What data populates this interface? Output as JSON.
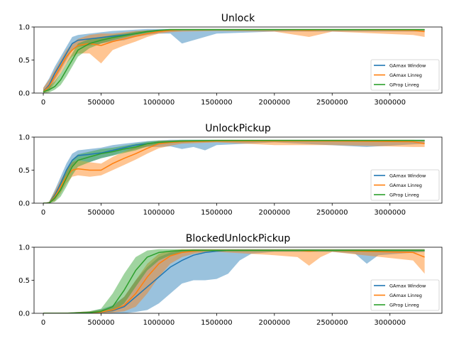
{
  "chart_data": [
    {
      "type": "line",
      "title": "Unlock",
      "xlim": [
        -80000,
        3450000
      ],
      "ylim": [
        0,
        1.0
      ],
      "xticks": [
        0,
        500000,
        1000000,
        1500000,
        2000000,
        2500000,
        3000000
      ],
      "xtick_labels": [
        "0",
        "500000",
        "1000000",
        "1500000",
        "2000000",
        "2500000",
        "3000000"
      ],
      "yticks": [
        0,
        0.5,
        1.0
      ],
      "ytick_labels": [
        "0.0",
        "0.5",
        "1.0"
      ],
      "legend_position": "lower-right",
      "series": [
        {
          "name": "GAmax Window",
          "color": "#1f77b4",
          "x": [
            0,
            50000,
            100000,
            150000,
            200000,
            250000,
            300000,
            400000,
            500000,
            600000,
            700000,
            800000,
            900000,
            1000000,
            1100000,
            1200000,
            1500000,
            2000000,
            2500000,
            3300000
          ],
          "y": [
            0.02,
            0.12,
            0.3,
            0.45,
            0.6,
            0.75,
            0.8,
            0.82,
            0.84,
            0.86,
            0.88,
            0.9,
            0.93,
            0.95,
            0.96,
            0.96,
            0.96,
            0.96,
            0.96,
            0.96
          ],
          "lower": [
            0,
            0.05,
            0.2,
            0.35,
            0.5,
            0.65,
            0.7,
            0.72,
            0.75,
            0.78,
            0.8,
            0.85,
            0.88,
            0.9,
            0.9,
            0.75,
            0.9,
            0.93,
            0.93,
            0.93
          ],
          "upper": [
            0.08,
            0.22,
            0.4,
            0.55,
            0.7,
            0.85,
            0.88,
            0.9,
            0.92,
            0.94,
            0.95,
            0.96,
            0.97,
            0.97,
            0.97,
            0.97,
            0.97,
            0.97,
            0.97,
            0.97
          ]
        },
        {
          "name": "GAmax Linreg",
          "color": "#ff7f0e",
          "x": [
            0,
            50000,
            100000,
            150000,
            200000,
            250000,
            300000,
            400000,
            500000,
            600000,
            700000,
            800000,
            900000,
            1000000,
            1100000,
            1200000,
            1500000,
            2000000,
            2300000,
            2500000,
            3200000,
            3300000
          ],
          "y": [
            0.02,
            0.1,
            0.25,
            0.4,
            0.55,
            0.65,
            0.72,
            0.75,
            0.72,
            0.78,
            0.82,
            0.86,
            0.9,
            0.93,
            0.95,
            0.96,
            0.96,
            0.96,
            0.95,
            0.96,
            0.95,
            0.93
          ],
          "lower": [
            0,
            0.03,
            0.15,
            0.3,
            0.45,
            0.55,
            0.6,
            0.6,
            0.45,
            0.65,
            0.72,
            0.78,
            0.85,
            0.9,
            0.92,
            0.93,
            0.94,
            0.93,
            0.85,
            0.93,
            0.88,
            0.85
          ],
          "upper": [
            0.08,
            0.2,
            0.35,
            0.5,
            0.65,
            0.75,
            0.82,
            0.88,
            0.9,
            0.9,
            0.92,
            0.94,
            0.95,
            0.96,
            0.97,
            0.97,
            0.97,
            0.97,
            0.97,
            0.97,
            0.97,
            0.97
          ]
        },
        {
          "name": "GProp Linreg",
          "color": "#2ca02c",
          "x": [
            0,
            50000,
            100000,
            150000,
            200000,
            250000,
            300000,
            400000,
            500000,
            600000,
            700000,
            800000,
            900000,
            1000000,
            1100000,
            1200000,
            1500000,
            2000000,
            2500000,
            3300000
          ],
          "y": [
            0.02,
            0.05,
            0.1,
            0.2,
            0.35,
            0.5,
            0.65,
            0.75,
            0.8,
            0.84,
            0.87,
            0.9,
            0.93,
            0.95,
            0.96,
            0.96,
            0.96,
            0.96,
            0.96,
            0.96
          ],
          "lower": [
            0,
            0.01,
            0.05,
            0.12,
            0.25,
            0.4,
            0.55,
            0.68,
            0.75,
            0.8,
            0.84,
            0.88,
            0.91,
            0.93,
            0.94,
            0.95,
            0.95,
            0.95,
            0.95,
            0.95
          ],
          "upper": [
            0.05,
            0.1,
            0.18,
            0.3,
            0.45,
            0.6,
            0.75,
            0.82,
            0.85,
            0.88,
            0.9,
            0.93,
            0.95,
            0.96,
            0.97,
            0.97,
            0.97,
            0.97,
            0.97,
            0.97
          ]
        }
      ]
    },
    {
      "type": "line",
      "title": "UnlockPickup",
      "xlim": [
        -80000,
        3450000
      ],
      "ylim": [
        0,
        1.0
      ],
      "xticks": [
        0,
        500000,
        1000000,
        1500000,
        2000000,
        2500000,
        3000000
      ],
      "xtick_labels": [
        "0",
        "500000",
        "1000000",
        "1500000",
        "2000000",
        "2500000",
        "3000000"
      ],
      "yticks": [
        0,
        0.5,
        1.0
      ],
      "ytick_labels": [
        "0.0",
        "0.5",
        "1.0"
      ],
      "legend_position": "lower-right",
      "series": [
        {
          "name": "GAmax Window",
          "color": "#1f77b4",
          "x": [
            0,
            50000,
            100000,
            150000,
            200000,
            250000,
            300000,
            400000,
            500000,
            600000,
            700000,
            800000,
            900000,
            1000000,
            1100000,
            1200000,
            1300000,
            1400000,
            1500000,
            2000000,
            2800000,
            3300000
          ],
          "y": [
            0,
            0,
            0.12,
            0.3,
            0.5,
            0.65,
            0.72,
            0.74,
            0.76,
            0.8,
            0.84,
            0.88,
            0.9,
            0.92,
            0.93,
            0.93,
            0.94,
            0.94,
            0.95,
            0.95,
            0.95,
            0.95
          ],
          "lower": [
            0,
            0,
            0.05,
            0.2,
            0.4,
            0.55,
            0.65,
            0.62,
            0.68,
            0.72,
            0.78,
            0.82,
            0.85,
            0.85,
            0.86,
            0.82,
            0.85,
            0.8,
            0.88,
            0.92,
            0.85,
            0.9
          ],
          "upper": [
            0,
            0.02,
            0.2,
            0.4,
            0.6,
            0.75,
            0.8,
            0.82,
            0.84,
            0.88,
            0.9,
            0.92,
            0.94,
            0.95,
            0.96,
            0.96,
            0.96,
            0.96,
            0.96,
            0.96,
            0.96,
            0.96
          ]
        },
        {
          "name": "GAmax Linreg",
          "color": "#ff7f0e",
          "x": [
            0,
            50000,
            100000,
            150000,
            200000,
            250000,
            300000,
            400000,
            500000,
            600000,
            700000,
            800000,
            900000,
            1000000,
            1100000,
            1200000,
            1500000,
            2000000,
            2500000,
            3200000,
            3300000
          ],
          "y": [
            0,
            0,
            0.1,
            0.25,
            0.4,
            0.5,
            0.52,
            0.5,
            0.5,
            0.6,
            0.68,
            0.75,
            0.83,
            0.9,
            0.92,
            0.93,
            0.94,
            0.94,
            0.94,
            0.93,
            0.9
          ],
          "lower": [
            0,
            0,
            0.03,
            0.15,
            0.3,
            0.4,
            0.42,
            0.4,
            0.42,
            0.5,
            0.58,
            0.66,
            0.75,
            0.83,
            0.87,
            0.9,
            0.92,
            0.88,
            0.88,
            0.85,
            0.85
          ],
          "upper": [
            0,
            0.02,
            0.18,
            0.35,
            0.5,
            0.62,
            0.65,
            0.62,
            0.6,
            0.7,
            0.78,
            0.85,
            0.9,
            0.94,
            0.95,
            0.95,
            0.96,
            0.96,
            0.96,
            0.96,
            0.95
          ]
        },
        {
          "name": "GProp Linreg",
          "color": "#2ca02c",
          "x": [
            0,
            50000,
            100000,
            150000,
            200000,
            250000,
            300000,
            400000,
            500000,
            600000,
            700000,
            800000,
            900000,
            1000000,
            1100000,
            1200000,
            1500000,
            2000000,
            2500000,
            3300000
          ],
          "y": [
            0,
            0,
            0.08,
            0.2,
            0.38,
            0.55,
            0.65,
            0.7,
            0.75,
            0.78,
            0.82,
            0.85,
            0.9,
            0.92,
            0.93,
            0.94,
            0.95,
            0.95,
            0.95,
            0.95
          ],
          "lower": [
            0,
            0,
            0.02,
            0.1,
            0.25,
            0.42,
            0.55,
            0.62,
            0.68,
            0.72,
            0.76,
            0.8,
            0.86,
            0.89,
            0.91,
            0.92,
            0.93,
            0.94,
            0.94,
            0.94
          ],
          "upper": [
            0,
            0.02,
            0.15,
            0.3,
            0.5,
            0.66,
            0.74,
            0.78,
            0.82,
            0.84,
            0.87,
            0.9,
            0.93,
            0.95,
            0.95,
            0.96,
            0.96,
            0.96,
            0.96,
            0.96
          ]
        }
      ]
    },
    {
      "type": "line",
      "title": "BlockedUnlockPickup",
      "xlim": [
        -80000,
        3450000
      ],
      "ylim": [
        0,
        1.0
      ],
      "xticks": [
        0,
        500000,
        1000000,
        1500000,
        2000000,
        2500000,
        3000000
      ],
      "xtick_labels": [
        "0",
        "500000",
        "1000000",
        "1500000",
        "2000000",
        "2500000",
        "3000000"
      ],
      "yticks": [
        0,
        0.5,
        1.0
      ],
      "ytick_labels": [
        "0.0",
        "0.5",
        "1.0"
      ],
      "legend_position": "lower-right",
      "series": [
        {
          "name": "GAmax Window",
          "color": "#1f77b4",
          "x": [
            0,
            200000,
            400000,
            500000,
            600000,
            700000,
            800000,
            900000,
            1000000,
            1100000,
            1200000,
            1300000,
            1400000,
            1500000,
            1600000,
            1700000,
            1800000,
            2000000,
            2500000,
            2700000,
            2800000,
            2900000,
            3300000
          ],
          "y": [
            0,
            0,
            0.01,
            0.02,
            0.04,
            0.1,
            0.25,
            0.4,
            0.55,
            0.7,
            0.8,
            0.88,
            0.92,
            0.94,
            0.95,
            0.95,
            0.95,
            0.95,
            0.95,
            0.95,
            0.95,
            0.95,
            0.95
          ],
          "lower": [
            0,
            0,
            0,
            0,
            0,
            0,
            0.02,
            0.05,
            0.15,
            0.3,
            0.45,
            0.5,
            0.5,
            0.52,
            0.6,
            0.8,
            0.9,
            0.93,
            0.93,
            0.9,
            0.75,
            0.88,
            0.93
          ],
          "upper": [
            0,
            0.01,
            0.03,
            0.06,
            0.12,
            0.25,
            0.5,
            0.7,
            0.85,
            0.92,
            0.95,
            0.97,
            0.97,
            0.97,
            0.97,
            0.97,
            0.97,
            0.97,
            0.97,
            0.97,
            0.97,
            0.97,
            0.97
          ]
        },
        {
          "name": "GAmax Linreg",
          "color": "#ff7f0e",
          "x": [
            0,
            200000,
            400000,
            500000,
            600000,
            700000,
            800000,
            900000,
            1000000,
            1100000,
            1200000,
            1300000,
            1400000,
            1500000,
            2000000,
            2200000,
            2300000,
            2400000,
            2500000,
            3200000,
            3300000
          ],
          "y": [
            0,
            0,
            0.01,
            0.02,
            0.05,
            0.12,
            0.3,
            0.55,
            0.75,
            0.87,
            0.92,
            0.94,
            0.95,
            0.95,
            0.95,
            0.95,
            0.94,
            0.95,
            0.95,
            0.92,
            0.85
          ],
          "lower": [
            0,
            0,
            0,
            0,
            0.01,
            0.03,
            0.1,
            0.3,
            0.55,
            0.75,
            0.85,
            0.9,
            0.92,
            0.93,
            0.88,
            0.85,
            0.72,
            0.85,
            0.93,
            0.8,
            0.6
          ],
          "upper": [
            0,
            0.01,
            0.03,
            0.05,
            0.1,
            0.25,
            0.5,
            0.75,
            0.9,
            0.95,
            0.97,
            0.97,
            0.97,
            0.97,
            0.97,
            0.97,
            0.97,
            0.97,
            0.97,
            0.97,
            0.97
          ]
        },
        {
          "name": "GProp Linreg",
          "color": "#2ca02c",
          "x": [
            0,
            200000,
            400000,
            500000,
            600000,
            700000,
            800000,
            900000,
            1000000,
            1100000,
            1200000,
            1300000,
            1500000,
            2000000,
            2500000,
            3300000
          ],
          "y": [
            0,
            0,
            0.01,
            0.03,
            0.1,
            0.35,
            0.65,
            0.85,
            0.92,
            0.94,
            0.95,
            0.95,
            0.95,
            0.95,
            0.95,
            0.95
          ],
          "lower": [
            0,
            0,
            0,
            0.01,
            0.03,
            0.15,
            0.4,
            0.65,
            0.8,
            0.88,
            0.92,
            0.94,
            0.94,
            0.94,
            0.94,
            0.94
          ],
          "upper": [
            0,
            0.01,
            0.03,
            0.07,
            0.3,
            0.6,
            0.85,
            0.95,
            0.97,
            0.97,
            0.97,
            0.97,
            0.97,
            0.97,
            0.97,
            0.97
          ]
        }
      ]
    }
  ]
}
